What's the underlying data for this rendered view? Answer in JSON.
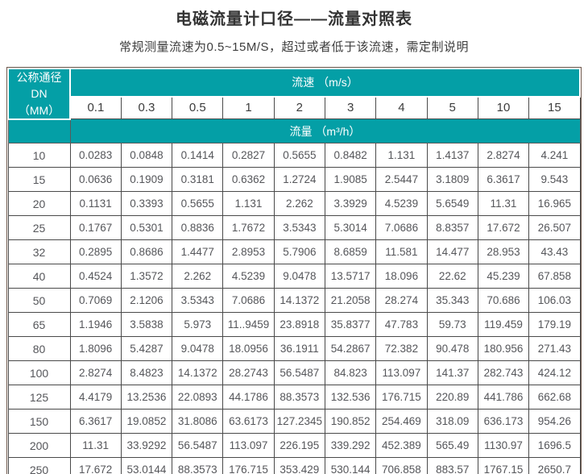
{
  "page": {
    "title": "电磁流量计口径——流量对照表",
    "subtitle": "常规测量流速为0.5~15M/S，超过或者低于该流速，需定制说明"
  },
  "colors": {
    "accent_teal": "#049fa6",
    "header_text": "#ffffff",
    "data_text": "#55565a",
    "cell_border": "#4a4a4a",
    "outer_border": "#6e584c"
  },
  "chart_data": {
    "type": "table",
    "title": "电磁流量计口径——流量对照表",
    "subtitle": "常规测量流速为0.5~15M/S，超过或者低于该流速，需定制说明",
    "corner_header_line1": "公称通径DN",
    "corner_header_line2": "（MM）",
    "velocity_group_header": "流速 （m/s）",
    "flow_group_header": "流量 （m³/h）",
    "velocities": [
      "0.1",
      "0.3",
      "0.5",
      "1",
      "2",
      "3",
      "4",
      "5",
      "10",
      "15"
    ],
    "rows": [
      {
        "dn": "10",
        "values": [
          "0.0283",
          "0.0848",
          "0.1414",
          "0.2827",
          "0.5655",
          "0.8482",
          "1.131",
          "1.4137",
          "2.8274",
          "4.241"
        ]
      },
      {
        "dn": "15",
        "values": [
          "0.0636",
          "0.1909",
          "0.3181",
          "0.6362",
          "1.2724",
          "1.9085",
          "2.5447",
          "3.1809",
          "6.3617",
          "9.543"
        ]
      },
      {
        "dn": "20",
        "values": [
          "0.1131",
          "0.3393",
          "0.5655",
          "1.131",
          "2.262",
          "3.3929",
          "4.5239",
          "5.6549",
          "11.31",
          "16.965"
        ]
      },
      {
        "dn": "25",
        "values": [
          "0.1767",
          "0.5301",
          "0.8836",
          "1.7672",
          "3.5343",
          "5.3014",
          "7.0686",
          "8.8357",
          "17.672",
          "26.507"
        ]
      },
      {
        "dn": "32",
        "values": [
          "0.2895",
          "0.8686",
          "1.4477",
          "2.8953",
          "5.7906",
          "8.6859",
          "11.581",
          "14.477",
          "28.953",
          "43.43"
        ]
      },
      {
        "dn": "40",
        "values": [
          "0.4524",
          "1.3572",
          "2.262",
          "4.5239",
          "9.0478",
          "13.5717",
          "18.096",
          "22.62",
          "45.239",
          "67.858"
        ]
      },
      {
        "dn": "50",
        "values": [
          "0.7069",
          "2.1206",
          "3.5343",
          "7.0686",
          "14.1372",
          "21.2058",
          "28.274",
          "35.343",
          "70.686",
          "106.03"
        ]
      },
      {
        "dn": "65",
        "values": [
          "1.1946",
          "3.5838",
          "5.973",
          "11..9459",
          "23.8918",
          "35.8377",
          "47.783",
          "59.73",
          "119.459",
          "179.19"
        ]
      },
      {
        "dn": "80",
        "values": [
          "1.8096",
          "5.4287",
          "9.0478",
          "18.0956",
          "36.1911",
          "54.2867",
          "72.382",
          "90.478",
          "180.956",
          "271.43"
        ]
      },
      {
        "dn": "100",
        "values": [
          "2.8274",
          "8.4823",
          "14.1372",
          "28.2743",
          "56.5487",
          "84.823",
          "113.097",
          "141.37",
          "282.743",
          "424.12"
        ]
      },
      {
        "dn": "125",
        "values": [
          "4.4179",
          "13.2536",
          "22.0893",
          "44.1786",
          "88.3573",
          "132.536",
          "176.715",
          "220.89",
          "441.786",
          "662.68"
        ]
      },
      {
        "dn": "150",
        "values": [
          "6.3617",
          "19.0852",
          "31.8086",
          "63.6173",
          "127.2345",
          "190.852",
          "254.469",
          "318.09",
          "636.173",
          "954.26"
        ]
      },
      {
        "dn": "200",
        "values": [
          "11.31",
          "33.9292",
          "56.5487",
          "113.097",
          "226.195",
          "339.292",
          "452.389",
          "565.49",
          "1130.97",
          "1696.5"
        ]
      },
      {
        "dn": "250",
        "values": [
          "17.672",
          "53.0144",
          "88.3573",
          "176.715",
          "353.429",
          "530.144",
          "706.858",
          "883.57",
          "1767.15",
          "2650.7"
        ]
      }
    ]
  }
}
